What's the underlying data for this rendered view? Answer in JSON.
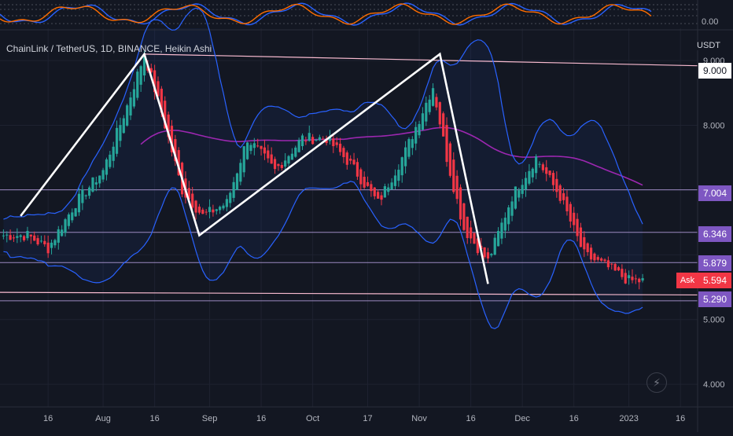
{
  "header": {
    "symbol_title": "ChainLink / TetherUS, 1D, BINANCE, Heikin Ashi",
    "currency": "USDT",
    "oscillator_zero": "0.00"
  },
  "price_axis": {
    "ticks": [
      "9.000",
      "8.000",
      "5.000",
      "4.000"
    ],
    "badges": [
      {
        "value": "9.000",
        "color": "#ffffff",
        "text_color": "#131722"
      },
      {
        "value": "7.004",
        "color": "#7e57c2",
        "text_color": "#ffffff"
      },
      {
        "value": "6.346",
        "color": "#7e57c2",
        "text_color": "#ffffff"
      },
      {
        "value": "5.879",
        "color": "#7e57c2",
        "text_color": "#ffffff"
      },
      {
        "value": "5.594",
        "color": "#f23645",
        "text_color": "#ffffff"
      },
      {
        "value": "5.290",
        "color": "#7e57c2",
        "text_color": "#ffffff"
      }
    ],
    "ask_label": "Ask"
  },
  "time_axis": {
    "labels": [
      "16",
      "Aug",
      "16",
      "Sep",
      "16",
      "Oct",
      "17",
      "Nov",
      "16",
      "Dec",
      "16",
      "2023",
      "16"
    ]
  },
  "colors": {
    "background": "#131722",
    "bull": "#26a69a",
    "bear": "#f23645",
    "bollinger": "#2962ff",
    "ma": "#9c27b0",
    "zigzag": "#ffffff",
    "hline": "#b39ddb",
    "trend": "#f8bbd0",
    "oscillator_fast": "#2962ff",
    "oscillator_slow": "#ff6d00"
  },
  "icons": {
    "alert": "lightning-icon"
  },
  "chart_data": {
    "type": "candlestick",
    "title": "ChainLink / TetherUS, 1D, BINANCE, Heikin Ashi",
    "ylabel": "USDT",
    "ylim": [
      3.65,
      9.45
    ],
    "candles_approx": [
      {
        "date": "2022-07-10",
        "close": 6.3
      },
      {
        "date": "2022-07-16",
        "close": 6.1
      },
      {
        "date": "2022-07-24",
        "close": 6.8
      },
      {
        "date": "2022-08-01",
        "close": 7.3
      },
      {
        "date": "2022-08-08",
        "close": 8.3
      },
      {
        "date": "2022-08-13",
        "close": 9.1
      },
      {
        "date": "2022-08-18",
        "close": 8.2
      },
      {
        "date": "2022-08-24",
        "close": 7.0
      },
      {
        "date": "2022-08-30",
        "close": 6.6
      },
      {
        "date": "2022-09-06",
        "close": 6.8
      },
      {
        "date": "2022-09-12",
        "close": 7.8
      },
      {
        "date": "2022-09-20",
        "close": 7.3
      },
      {
        "date": "2022-09-28",
        "close": 7.8
      },
      {
        "date": "2022-10-05",
        "close": 7.8
      },
      {
        "date": "2022-10-12",
        "close": 7.4
      },
      {
        "date": "2022-10-20",
        "close": 6.8
      },
      {
        "date": "2022-10-28",
        "close": 7.6
      },
      {
        "date": "2022-11-05",
        "close": 8.6
      },
      {
        "date": "2022-11-09",
        "close": 7.5
      },
      {
        "date": "2022-11-14",
        "close": 6.4
      },
      {
        "date": "2022-11-21",
        "close": 5.9
      },
      {
        "date": "2022-11-28",
        "close": 6.9
      },
      {
        "date": "2022-12-05",
        "close": 7.5
      },
      {
        "date": "2022-12-12",
        "close": 6.9
      },
      {
        "date": "2022-12-19",
        "close": 6.0
      },
      {
        "date": "2022-12-26",
        "close": 5.8
      },
      {
        "date": "2023-01-01",
        "close": 5.6
      },
      {
        "date": "2023-01-05",
        "close": 5.594
      }
    ],
    "horizontal_levels": [
      7.004,
      6.346,
      5.879,
      5.29
    ],
    "zigzag_points": [
      {
        "date": "2022-07-08",
        "price": 6.6
      },
      {
        "date": "2022-08-13",
        "price": 9.1
      },
      {
        "date": "2022-08-29",
        "price": 6.3
      },
      {
        "date": "2022-11-07",
        "price": 9.1
      },
      {
        "date": "2022-11-21",
        "price": 5.55
      }
    ]
  }
}
